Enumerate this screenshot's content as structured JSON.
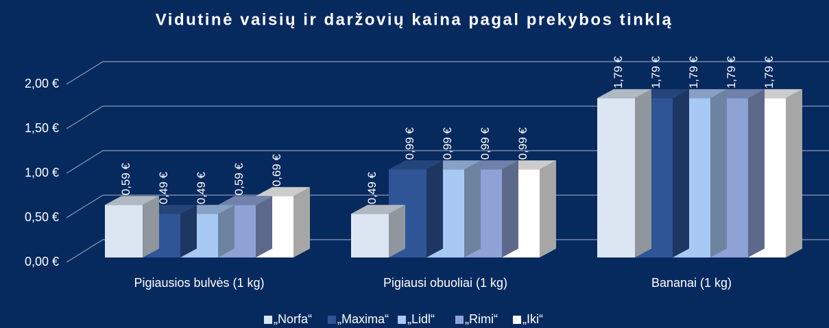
{
  "chart_data": {
    "type": "bar3d",
    "title": "Vidutinė vaisių ir daržovių kaina pagal prekybos tinklą",
    "categories": [
      "Pigiausios bulvės (1 kg)",
      "Pigiausi obuoliai (1 kg)",
      "Bananai (1 kg)"
    ],
    "series": [
      {
        "name": "„Norfa“",
        "color": "#dce6f2",
        "values": [
          0.59,
          0.49,
          1.79
        ],
        "value_labels": [
          "0,59 €",
          "0,49 €",
          "1,79 €"
        ]
      },
      {
        "name": "„Maxima“",
        "color": "#2f5597",
        "values": [
          0.49,
          0.99,
          1.79
        ],
        "value_labels": [
          "0,49 €",
          "0,99 €",
          "1,79 €"
        ]
      },
      {
        "name": "„Lidl“",
        "color": "#a9c9f5",
        "values": [
          0.49,
          0.99,
          1.79
        ],
        "value_labels": [
          "0,49 €",
          "0,99 €",
          "1,79 €"
        ]
      },
      {
        "name": "„Rimi“",
        "color": "#8ea2d6",
        "values": [
          0.59,
          0.99,
          1.79
        ],
        "value_labels": [
          "0,59 €",
          "0,99 €",
          "1,79 €"
        ]
      },
      {
        "name": "„Iki“",
        "color": "#ffffff",
        "values": [
          0.69,
          0.99,
          1.79
        ],
        "value_labels": [
          "0,69 €",
          "0,99 €",
          "1,79 €"
        ]
      }
    ],
    "ylim": [
      0,
      2
    ],
    "yticks": [
      {
        "value": 0,
        "label": "0,00 €"
      },
      {
        "value": 0.5,
        "label": "0,50 €"
      },
      {
        "value": 1,
        "label": "1,00 €"
      },
      {
        "value": 1.5,
        "label": "1,50 €"
      },
      {
        "value": 2,
        "label": "2,00 €"
      }
    ],
    "grid": true,
    "legend": "bottom"
  }
}
